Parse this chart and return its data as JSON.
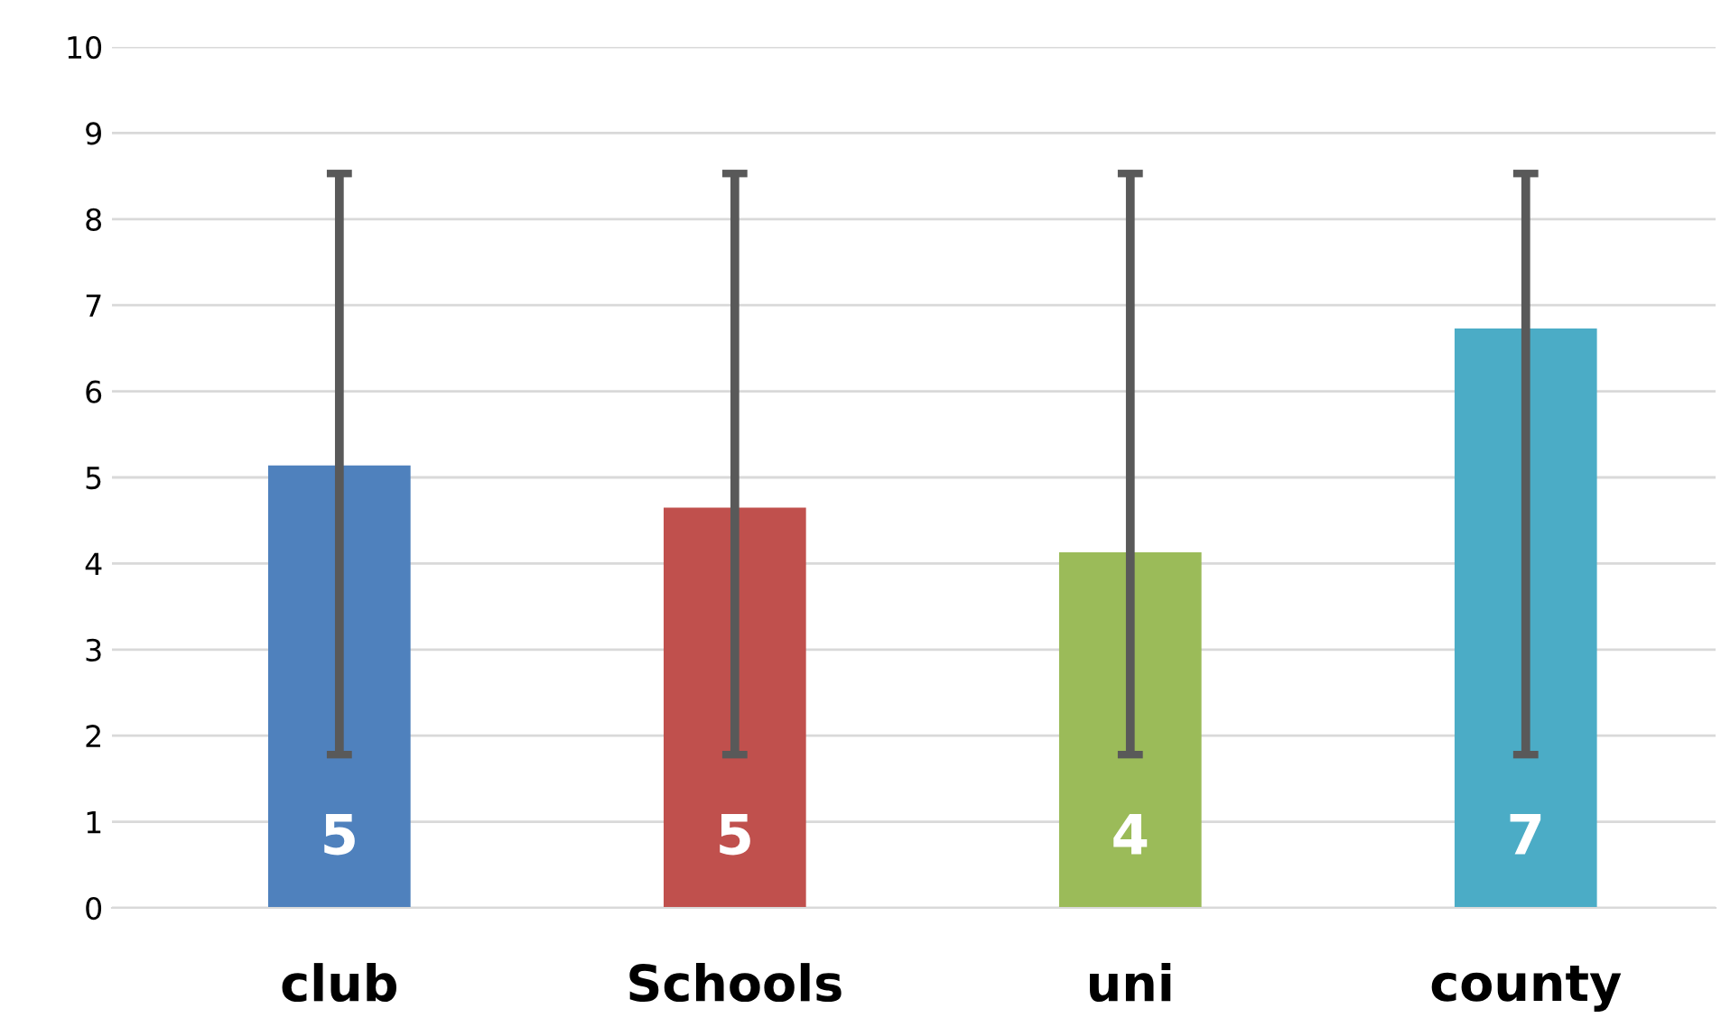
{
  "chart_data": {
    "type": "bar",
    "categories": [
      "club",
      "Schools",
      "uni",
      "county"
    ],
    "values": [
      5.14,
      4.65,
      4.13,
      6.73
    ],
    "colors": [
      "#4f81bd",
      "#c0504d",
      "#9bbb59",
      "#4bacc6"
    ],
    "errors": [
      [
        1.78,
        8.53
      ],
      [
        1.78,
        8.53
      ],
      [
        1.78,
        8.53
      ],
      [
        1.78,
        8.53
      ]
    ],
    "value_labels": [
      "5",
      "5",
      "4",
      "7"
    ],
    "ylim": [
      0,
      10
    ],
    "yticks": [
      0,
      1,
      2,
      3,
      4,
      5,
      6,
      7,
      8,
      9,
      10
    ],
    "grid": "y",
    "legend": false
  }
}
